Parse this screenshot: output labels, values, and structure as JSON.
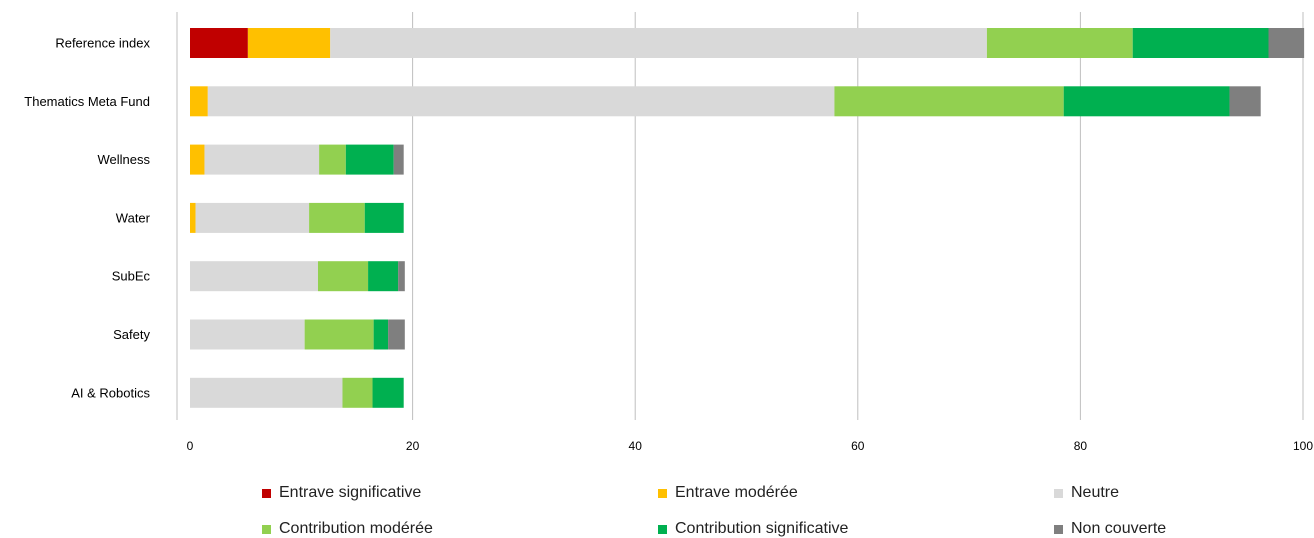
{
  "chart_data": {
    "type": "bar",
    "orientation": "horizontal",
    "stacked": true,
    "categories": [
      "Reference index",
      "Thematics Meta Fund",
      "Wellness",
      "Water",
      "SubEc",
      "Safety",
      "AI & Robotics"
    ],
    "series": [
      {
        "name": "Entrave significative",
        "color": "#c00000",
        "values": [
          5.2,
          0,
          0,
          0,
          0,
          0,
          0
        ]
      },
      {
        "name": "Entrave modérée",
        "color": "#ffc000",
        "values": [
          7.4,
          1.6,
          1.3,
          0.5,
          0,
          0,
          0
        ]
      },
      {
        "name": "Neutre",
        "color": "#d9d9d9",
        "values": [
          59.0,
          56.3,
          10.3,
          10.2,
          11.5,
          10.3,
          13.7
        ]
      },
      {
        "name": "Contribution modérée",
        "color": "#92d050",
        "values": [
          13.1,
          20.6,
          2.4,
          5.0,
          4.5,
          6.2,
          2.7
        ]
      },
      {
        "name": "Contribution significative",
        "color": "#00b050",
        "values": [
          12.2,
          14.9,
          4.3,
          3.5,
          2.7,
          1.3,
          2.8
        ]
      },
      {
        "name": "Non couverte",
        "color": "#7f7f7f",
        "values": [
          3.2,
          2.8,
          0.9,
          0,
          0.6,
          1.5,
          0
        ]
      }
    ],
    "xlim": [
      0,
      100
    ],
    "xticks": [
      0,
      20,
      40,
      60,
      80,
      100
    ],
    "grid": true,
    "legend_position": "bottom"
  }
}
